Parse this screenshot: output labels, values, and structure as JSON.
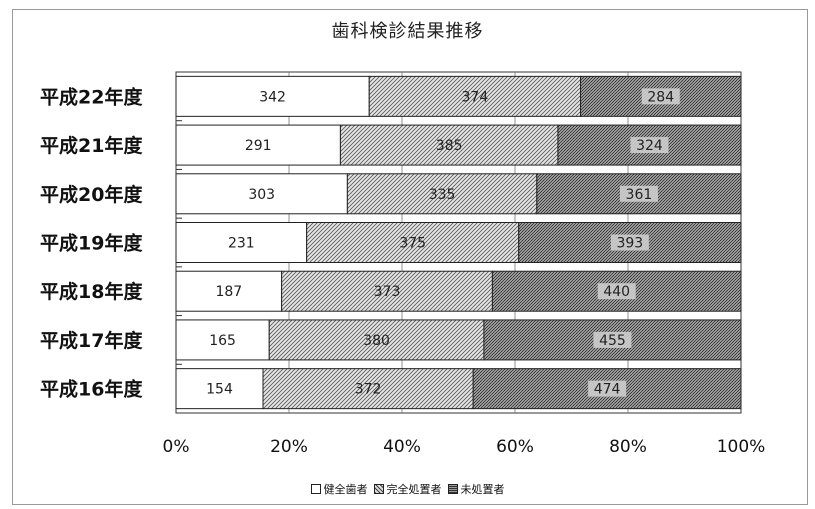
{
  "chart_data": {
    "type": "bar",
    "orientation": "horizontal",
    "stacked": "percent",
    "title": "歯科検診結果推移",
    "categories": [
      "平成22年度",
      "平成21年度",
      "平成20年度",
      "平成19年度",
      "平成18年度",
      "平成17年度",
      "平成16年度"
    ],
    "series": [
      {
        "name": "健全歯者",
        "values": [
          34.2,
          29.1,
          30.3,
          23.1,
          18.7,
          16.5,
          15.4
        ],
        "color": "#ffffff",
        "labels": [
          "342",
          "291",
          "303",
          "231",
          "187",
          "165",
          "154"
        ]
      },
      {
        "name": "完全処置者",
        "values": [
          37.4,
          38.5,
          33.5,
          37.5,
          37.3,
          38.0,
          37.2
        ],
        "color": "#cfcfcf",
        "labels": [
          "374",
          "385",
          "335",
          "375",
          "373",
          "380",
          "372"
        ]
      },
      {
        "name": "未処置者",
        "values": [
          28.4,
          32.4,
          36.1,
          39.3,
          44.0,
          45.5,
          47.4
        ],
        "color": "#8a8a8a",
        "labels": [
          "284",
          "324",
          "361",
          "393",
          "440",
          "455",
          "474"
        ]
      }
    ],
    "xlim": [
      0,
      100
    ],
    "x_ticks": [
      "0%",
      "20%",
      "40%",
      "60%",
      "80%",
      "100%"
    ],
    "grid": true,
    "legend_position": "bottom"
  }
}
